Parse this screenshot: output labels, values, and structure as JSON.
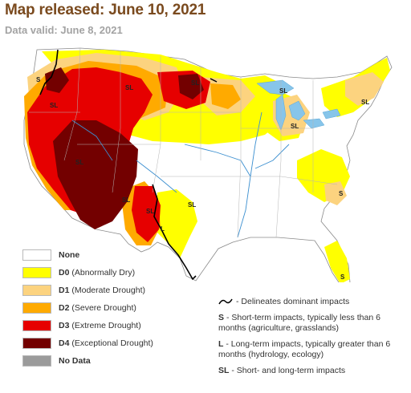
{
  "header": {
    "title": "Map released: June 10, 2021",
    "subtitle": "Data valid: June 8, 2021"
  },
  "legend": {
    "items": [
      {
        "code": "None",
        "desc": "",
        "color": "#ffffff"
      },
      {
        "code": "D0",
        "desc": "(Abnormally Dry)",
        "color": "#ffff00"
      },
      {
        "code": "D1",
        "desc": "(Moderate Drought)",
        "color": "#fcd37f"
      },
      {
        "code": "D2",
        "desc": "(Severe Drought)",
        "color": "#ffaa00"
      },
      {
        "code": "D3",
        "desc": "(Extreme Drought)",
        "color": "#e60000"
      },
      {
        "code": "D4",
        "desc": "(Exceptional Drought)",
        "color": "#730000"
      },
      {
        "code": "No Data",
        "desc": "",
        "color": "#9b9b9b"
      }
    ]
  },
  "notes": {
    "line_desc": "- Delineates dominant impacts",
    "s_code": "S",
    "s_desc": "- Short-term impacts, typically less than 6 months (agriculture, grasslands)",
    "l_code": "L",
    "l_desc": "- Long-term impacts, typically greater than 6 months (hydrology, ecology)",
    "sl_code": "SL",
    "sl_desc": "- Short- and long-term impacts"
  },
  "map_labels": {
    "sl_nw": "S",
    "sl_or": "SL",
    "sl_mt": "SL",
    "sl_mn": "SL",
    "sl_mi": "SL",
    "sl_ne": "SL",
    "sl_il": "SL",
    "sl_ca": "SL",
    "sl_az": "SL",
    "sl_ok": "SL",
    "l_tx": "L",
    "sl_nm": "SL",
    "s_nc": "S",
    "s_fl": "S"
  }
}
